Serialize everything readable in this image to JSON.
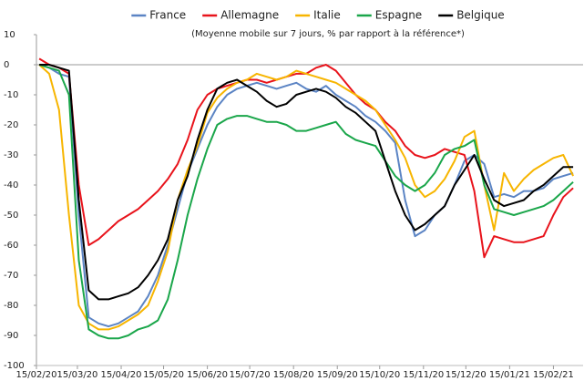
{
  "chart_data": {
    "type": "line",
    "subtitle": "(Moyenne mobile sur 7 jours, % par rapport à la référence*)",
    "x": [
      "2020-02-17",
      "2020-02-24",
      "2020-03-02",
      "2020-03-09",
      "2020-03-16",
      "2020-03-23",
      "2020-03-30",
      "2020-04-06",
      "2020-04-13",
      "2020-04-20",
      "2020-04-27",
      "2020-05-04",
      "2020-05-11",
      "2020-05-18",
      "2020-05-25",
      "2020-06-01",
      "2020-06-08",
      "2020-06-15",
      "2020-06-22",
      "2020-06-29",
      "2020-07-06",
      "2020-07-13",
      "2020-07-20",
      "2020-07-27",
      "2020-08-03",
      "2020-08-10",
      "2020-08-17",
      "2020-08-24",
      "2020-08-31",
      "2020-09-07",
      "2020-09-14",
      "2020-09-21",
      "2020-09-28",
      "2020-10-05",
      "2020-10-12",
      "2020-10-19",
      "2020-10-26",
      "2020-11-02",
      "2020-11-09",
      "2020-11-16",
      "2020-11-23",
      "2020-11-30",
      "2020-12-07",
      "2020-12-14",
      "2020-12-21",
      "2020-12-28",
      "2021-01-04",
      "2021-01-11",
      "2021-01-18",
      "2021-01-25",
      "2021-02-01",
      "2021-02-08",
      "2021-02-15",
      "2021-02-22",
      "2021-03-01"
    ],
    "series": [
      {
        "name": "France",
        "color": "#5b84c4",
        "values": [
          0,
          -1,
          -3,
          -4,
          -50,
          -84,
          -86,
          -87,
          -86,
          -84,
          -82,
          -77,
          -70,
          -60,
          -48,
          -36,
          -28,
          -20,
          -14,
          -10,
          -8,
          -7,
          -6,
          -7,
          -8,
          -7,
          -6,
          -8,
          -9,
          -7,
          -10,
          -12,
          -14,
          -17,
          -19,
          -22,
          -26,
          -45,
          -57,
          -55,
          -50,
          -47,
          -40,
          -32,
          -30,
          -33,
          -44,
          -43,
          -44,
          -42,
          -42,
          -41,
          -38,
          -37,
          -36
        ]
      },
      {
        "name": "Allemagne",
        "color": "#e8131b",
        "values": [
          2,
          0,
          -1,
          -3,
          -40,
          -60,
          -58,
          -55,
          -52,
          -50,
          -48,
          -45,
          -42,
          -38,
          -33,
          -25,
          -15,
          -10,
          -8,
          -7,
          -6,
          -5,
          -5,
          -6,
          -5,
          -4,
          -3,
          -3,
          -1,
          0,
          -2,
          -6,
          -10,
          -13,
          -15,
          -19,
          -22,
          -27,
          -30,
          -31,
          -30,
          -28,
          -29,
          -30,
          -42,
          -64,
          -57,
          -58,
          -59,
          -59,
          -58,
          -57,
          -50,
          -44,
          -41
        ]
      },
      {
        "name": "Italie",
        "color": "#f7b500",
        "values": [
          0,
          -3,
          -15,
          -50,
          -80,
          -86,
          -88,
          -88,
          -87,
          -85,
          -83,
          -80,
          -72,
          -62,
          -45,
          -35,
          -27,
          -16,
          -11,
          -8,
          -6,
          -5,
          -3,
          -4,
          -5,
          -4,
          -2,
          -3,
          -4,
          -5,
          -6,
          -8,
          -10,
          -12,
          -15,
          -20,
          -25,
          -31,
          -40,
          -44,
          -42,
          -38,
          -32,
          -24,
          -22,
          -40,
          -55,
          -36,
          -42,
          -38,
          -35,
          -33,
          -31,
          -30,
          -37
        ]
      },
      {
        "name": "Espagne",
        "color": "#1aa64a",
        "values": [
          0,
          -1,
          -2,
          -10,
          -65,
          -88,
          -90,
          -91,
          -91,
          -90,
          -88,
          -87,
          -85,
          -78,
          -65,
          -50,
          -38,
          -28,
          -20,
          -18,
          -17,
          -17,
          -18,
          -19,
          -19,
          -20,
          -22,
          -22,
          -21,
          -20,
          -19,
          -23,
          -25,
          -26,
          -27,
          -32,
          -37,
          -40,
          -42,
          -40,
          -36,
          -30,
          -28,
          -27,
          -25,
          -40,
          -48,
          -49,
          -50,
          -49,
          -48,
          -47,
          -45,
          -42,
          -39
        ]
      },
      {
        "name": "Belgique",
        "color": "#000000",
        "values": [
          0,
          0,
          -1,
          -2,
          -45,
          -75,
          -78,
          -78,
          -77,
          -76,
          -74,
          -70,
          -65,
          -58,
          -45,
          -37,
          -25,
          -15,
          -8,
          -6,
          -5,
          -7,
          -9,
          -12,
          -14,
          -13,
          -10,
          -9,
          -8,
          -9,
          -11,
          -14,
          -16,
          -19,
          -22,
          -32,
          -42,
          -50,
          -55,
          -53,
          -50,
          -47,
          -40,
          -35,
          -30,
          -38,
          -45,
          -47,
          -46,
          -45,
          -42,
          -40,
          -37,
          -34,
          -34
        ]
      }
    ],
    "xlim": [
      "2020-02-15",
      "2021-03-08"
    ],
    "xticks": [
      {
        "value": "2020-02-15",
        "label": "15/02/20"
      },
      {
        "value": "2020-03-15",
        "label": "15/03/20"
      },
      {
        "value": "2020-04-15",
        "label": "15/04/20"
      },
      {
        "value": "2020-05-15",
        "label": "15/05/20"
      },
      {
        "value": "2020-06-15",
        "label": "15/06/20"
      },
      {
        "value": "2020-07-15",
        "label": "15/07/20"
      },
      {
        "value": "2020-08-15",
        "label": "15/08/20"
      },
      {
        "value": "2020-09-15",
        "label": "15/09/20"
      },
      {
        "value": "2020-10-15",
        "label": "15/10/20"
      },
      {
        "value": "2020-11-15",
        "label": "15/11/20"
      },
      {
        "value": "2020-12-15",
        "label": "15/12/20"
      },
      {
        "value": "2021-01-15",
        "label": "15/01/21"
      },
      {
        "value": "2021-02-15",
        "label": "15/02/21"
      }
    ],
    "ylim": [
      -100,
      10
    ],
    "yticks": [
      10,
      0,
      -10,
      -20,
      -30,
      -40,
      -50,
      -60,
      -70,
      -80,
      -90,
      -100
    ],
    "legend": "top"
  }
}
